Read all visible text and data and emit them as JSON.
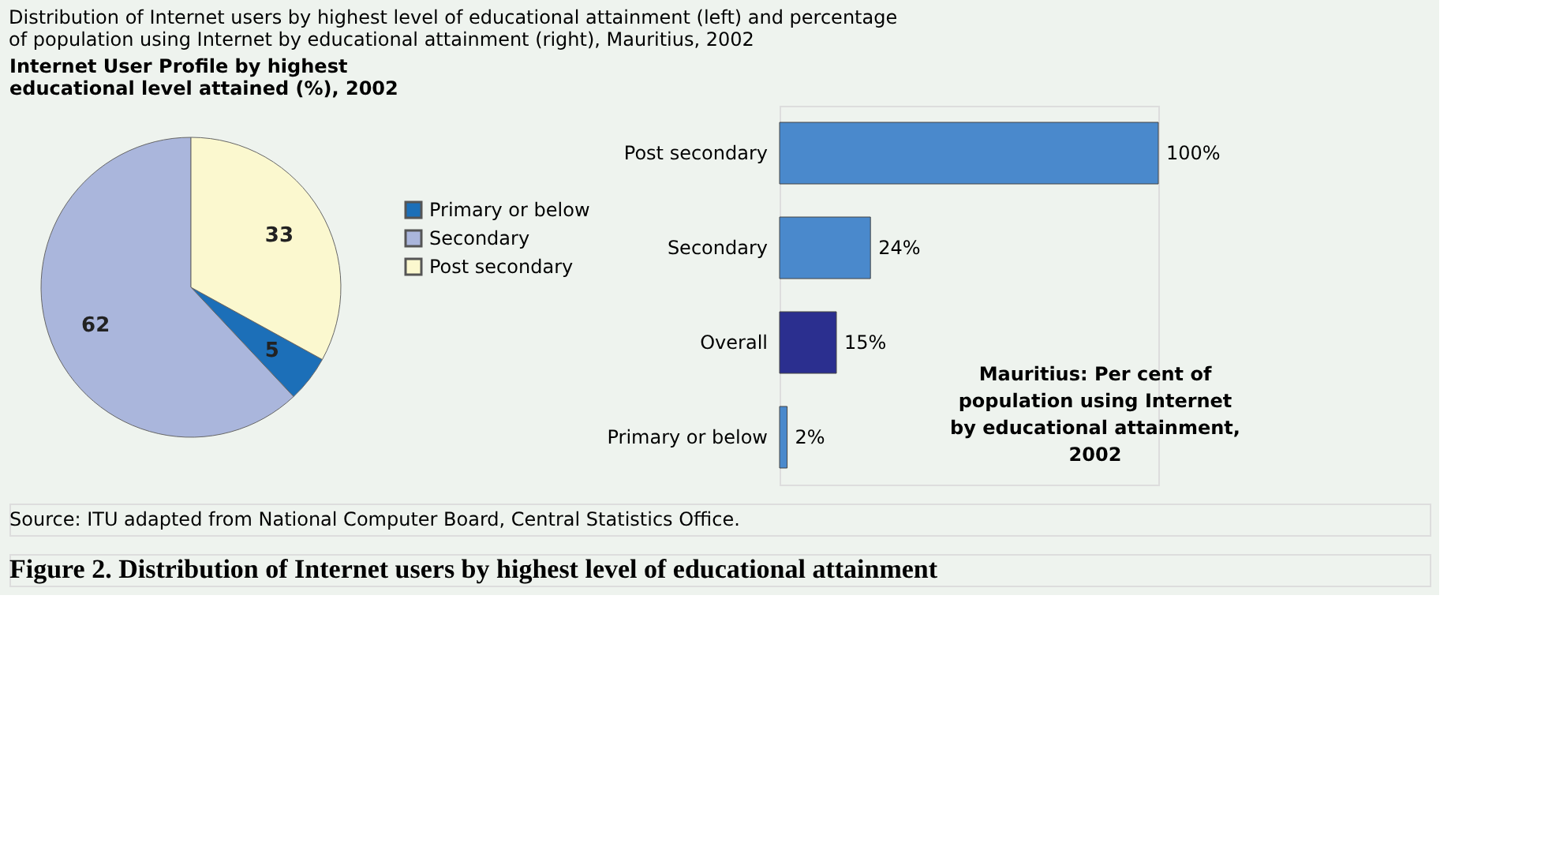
{
  "chart_data": [
    {
      "type": "pie",
      "title": "Internet User Profile by highest educational level attained (%), 2002",
      "categories": [
        "Primary or below",
        "Secondary",
        "Post secondary"
      ],
      "values": [
        5,
        62,
        33
      ],
      "colors": [
        "#1c6fb8",
        "#aab6dc",
        "#fbf8cf"
      ],
      "data_labels": true,
      "legend": "right",
      "annotations": [
        "Distribution of Internet users by highest level of educational attainment (left) and percentage of population using Internet by educational attainment (right), Mauritius, 2002",
        "Source: ITU adapted from National Computer Board, Central Statistics Office.",
        "Figure 2. Distribution of Internet users by highest level of educational attainment"
      ]
    },
    {
      "type": "bar",
      "orientation": "horizontal",
      "xlim": [
        0,
        100
      ],
      "categories": [
        "Post secondary",
        "Secondary",
        "Overall",
        "Primary or below"
      ],
      "values": [
        100,
        24,
        15,
        2
      ],
      "colors": [
        "#4a89cc",
        "#4a89cc",
        "#2b2f8f",
        "#4a89cc"
      ],
      "value_labels": [
        "100%",
        "24%",
        "15%",
        "2%"
      ],
      "annotations": [
        "Mauritius: Per cent of population using Internet by educational attainment, 2002"
      ]
    }
  ]
}
